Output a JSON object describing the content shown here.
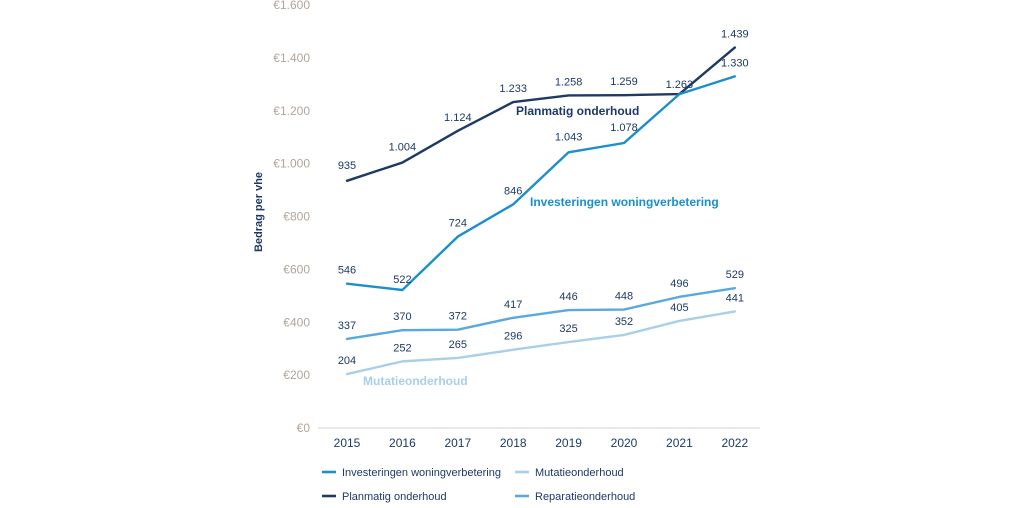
{
  "chart_data": {
    "type": "line",
    "ylabel": "Bedrag per vhe",
    "xlabel": "",
    "ylim": [
      0,
      1600
    ],
    "y_ticks": [
      0,
      200,
      400,
      600,
      800,
      1000,
      1200,
      1400,
      1600
    ],
    "y_tick_labels": [
      "€0",
      "€200",
      "€400",
      "€600",
      "€800",
      "€1.000",
      "€1.200",
      "€1.400",
      "€1.600"
    ],
    "grid": false,
    "legend_placement": "bottom",
    "categories": [
      "2015",
      "2016",
      "2017",
      "2018",
      "2019",
      "2020",
      "2021",
      "2022"
    ],
    "series": [
      {
        "name": "Planmatig onderhoud",
        "color": "#1d3a66",
        "values": [
          935,
          1004,
          1124,
          1233,
          1258,
          1259,
          1263,
          1439
        ],
        "value_labels": [
          "935",
          "1.004",
          "1.124",
          "1.233",
          "1.258",
          "1.259",
          "1.263",
          "1.439"
        ]
      },
      {
        "name": "Investeringen woningverbetering",
        "color": "#1b8fc9",
        "values": [
          546,
          522,
          724,
          846,
          1043,
          1078,
          1263,
          1330
        ],
        "value_labels": [
          "546",
          "522",
          "724",
          "846",
          "1.043",
          "1.078",
          "",
          "1.330"
        ]
      },
      {
        "name": "Reparatieonderhoud",
        "color": "#5aa9dd",
        "values": [
          337,
          370,
          372,
          417,
          446,
          448,
          496,
          529
        ],
        "value_labels": [
          "337",
          "370",
          "372",
          "417",
          "446",
          "448",
          "496",
          "529"
        ]
      },
      {
        "name": "Mutatieonderhoud",
        "color": "#a9cfe9",
        "values": [
          204,
          252,
          265,
          296,
          325,
          352,
          405,
          441
        ],
        "value_labels": [
          "204",
          "252",
          "265",
          "296",
          "325",
          "352",
          "405",
          "441"
        ]
      }
    ],
    "inline_labels": [
      {
        "text": "Planmatig onderhoud",
        "series": "Planmatig onderhoud"
      },
      {
        "text": "Investeringen woningverbetering",
        "series": "Investeringen woningverbetering"
      },
      {
        "text": "Mutatieonderhoud",
        "series": "Mutatieonderhoud"
      }
    ],
    "legend": [
      {
        "label": "Investeringen woningverbetering",
        "color": "#1b8fc9"
      },
      {
        "label": "Mutatieonderhoud",
        "color": "#a9cfe9"
      },
      {
        "label": "Planmatig onderhoud",
        "color": "#1d3a66"
      },
      {
        "label": "Reparatieonderhoud",
        "color": "#5aa9dd"
      }
    ]
  }
}
